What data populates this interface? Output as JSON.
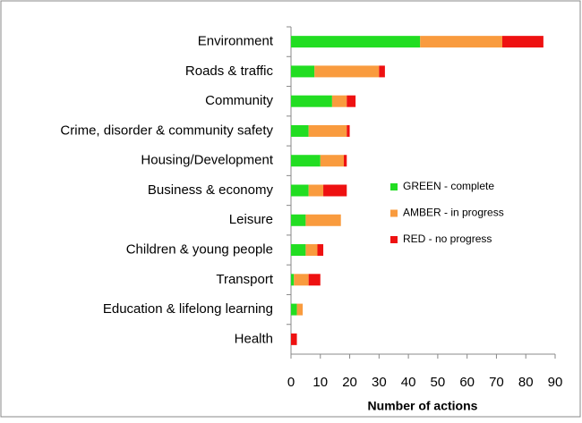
{
  "chart_data": {
    "type": "stacked_barh",
    "x_label": "Number of actions",
    "categories": [
      "Environment",
      "Roads & traffic",
      "Community",
      "Crime, disorder & community safety",
      "Housing/Development",
      "Business & economy",
      "Leisure",
      "Children & young people",
      "Transport",
      "Education & lifelong learning",
      "Health"
    ],
    "series": [
      {
        "name": "GREEN - complete",
        "color": "#22dd22",
        "values": [
          44,
          8,
          14,
          6,
          10,
          6,
          5,
          5,
          1,
          2,
          0
        ]
      },
      {
        "name": "AMBER - in progress",
        "color": "#f99b3e",
        "values": [
          28,
          22,
          5,
          13,
          8,
          5,
          12,
          4,
          5,
          2,
          0
        ]
      },
      {
        "name": "RED - no progress",
        "color": "#ee1111",
        "values": [
          14,
          2,
          3,
          1,
          1,
          8,
          0,
          2,
          4,
          0,
          2
        ]
      }
    ],
    "xlim": [
      0,
      90
    ],
    "xticks": [
      0,
      10,
      20,
      30,
      40,
      50,
      60,
      70,
      80,
      90
    ],
    "legend": "right"
  }
}
